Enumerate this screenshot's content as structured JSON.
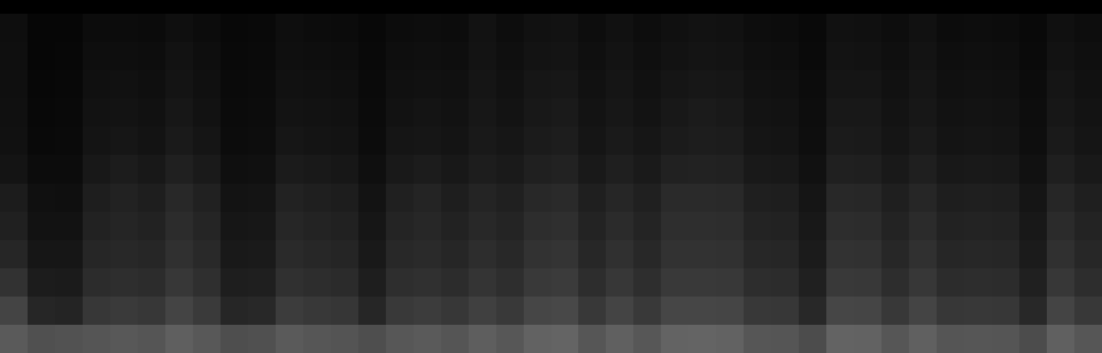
{
  "chart_data": {
    "type": "heatmap",
    "tick_labels": false,
    "cells": [
      [
        14,
        6,
        6,
        12,
        12,
        11,
        15,
        12,
        8,
        9,
        14,
        12,
        11,
        8,
        12,
        13,
        12,
        18,
        13,
        17,
        18,
        13,
        17,
        13,
        16,
        18,
        17,
        13,
        12,
        9,
        17,
        16,
        13,
        17,
        12,
        13,
        12,
        9,
        16,
        13
      ],
      [
        15,
        6,
        7,
        14,
        14,
        13,
        18,
        14,
        9,
        10,
        15,
        14,
        13,
        9,
        14,
        15,
        14,
        19,
        15,
        19,
        20,
        15,
        19,
        15,
        18,
        20,
        19,
        15,
        14,
        10,
        19,
        18,
        15,
        19,
        14,
        15,
        14,
        10,
        18,
        15
      ],
      [
        15,
        7,
        8,
        16,
        17,
        15,
        20,
        16,
        10,
        11,
        17,
        16,
        15,
        10,
        16,
        17,
        16,
        21,
        17,
        22,
        23,
        17,
        21,
        17,
        21,
        23,
        22,
        17,
        16,
        12,
        21,
        21,
        17,
        21,
        16,
        17,
        16,
        12,
        21,
        17
      ],
      [
        16,
        8,
        9,
        18,
        19,
        17,
        23,
        18,
        11,
        12,
        19,
        18,
        17,
        11,
        18,
        20,
        18,
        23,
        19,
        24,
        26,
        19,
        23,
        19,
        24,
        27,
        25,
        19,
        18,
        13,
        24,
        24,
        19,
        23,
        18,
        19,
        18,
        13,
        23,
        19
      ],
      [
        17,
        9,
        10,
        20,
        22,
        19,
        26,
        21,
        12,
        13,
        22,
        20,
        19,
        12,
        21,
        22,
        20,
        25,
        22,
        27,
        29,
        21,
        26,
        22,
        27,
        29,
        28,
        21,
        20,
        14,
        27,
        26,
        21,
        26,
        20,
        21,
        20,
        14,
        26,
        21
      ],
      [
        20,
        12,
        12,
        24,
        28,
        24,
        32,
        26,
        15,
        16,
        27,
        25,
        23,
        15,
        25,
        28,
        24,
        29,
        26,
        32,
        34,
        25,
        31,
        26,
        33,
        34,
        33,
        25,
        24,
        17,
        32,
        31,
        25,
        31,
        24,
        25,
        24,
        17,
        31,
        25
      ],
      [
        28,
        16,
        15,
        30,
        34,
        30,
        40,
        33,
        19,
        20,
        34,
        31,
        29,
        19,
        32,
        36,
        30,
        36,
        32,
        40,
        42,
        31,
        38,
        32,
        42,
        42,
        41,
        31,
        30,
        21,
        40,
        39,
        31,
        38,
        30,
        31,
        30,
        21,
        38,
        31
      ],
      [
        32,
        18,
        18,
        34,
        37,
        34,
        44,
        37,
        22,
        23,
        38,
        35,
        33,
        22,
        36,
        39,
        34,
        40,
        36,
        45,
        47,
        35,
        43,
        36,
        46,
        46,
        45,
        35,
        34,
        24,
        45,
        44,
        35,
        43,
        34,
        35,
        34,
        24,
        43,
        35
      ],
      [
        38,
        22,
        22,
        38,
        40,
        38,
        48,
        41,
        25,
        26,
        42,
        39,
        37,
        25,
        40,
        42,
        38,
        45,
        40,
        50,
        52,
        39,
        48,
        40,
        50,
        50,
        49,
        39,
        38,
        27,
        50,
        49,
        39,
        48,
        38,
        39,
        38,
        27,
        48,
        39
      ],
      [
        50,
        28,
        27,
        44,
        46,
        44,
        55,
        47,
        30,
        31,
        48,
        45,
        43,
        30,
        46,
        48,
        44,
        52,
        46,
        57,
        59,
        45,
        55,
        46,
        57,
        57,
        56,
        45,
        44,
        32,
        57,
        56,
        45,
        55,
        44,
        45,
        44,
        32,
        55,
        45
      ],
      [
        68,
        38,
        36,
        55,
        58,
        55,
        68,
        58,
        38,
        40,
        60,
        56,
        54,
        38,
        57,
        60,
        55,
        64,
        57,
        70,
        72,
        56,
        68,
        57,
        70,
        70,
        69,
        56,
        55,
        40,
        70,
        69,
        56,
        68,
        55,
        56,
        55,
        40,
        68,
        56
      ],
      [
        90,
        80,
        82,
        85,
        88,
        85,
        95,
        88,
        78,
        80,
        90,
        86,
        84,
        78,
        87,
        90,
        85,
        94,
        87,
        98,
        100,
        86,
        96,
        87,
        99,
        100,
        98,
        86,
        85,
        76,
        99,
        98,
        86,
        96,
        85,
        86,
        85,
        76,
        96,
        86
      ]
    ]
  }
}
